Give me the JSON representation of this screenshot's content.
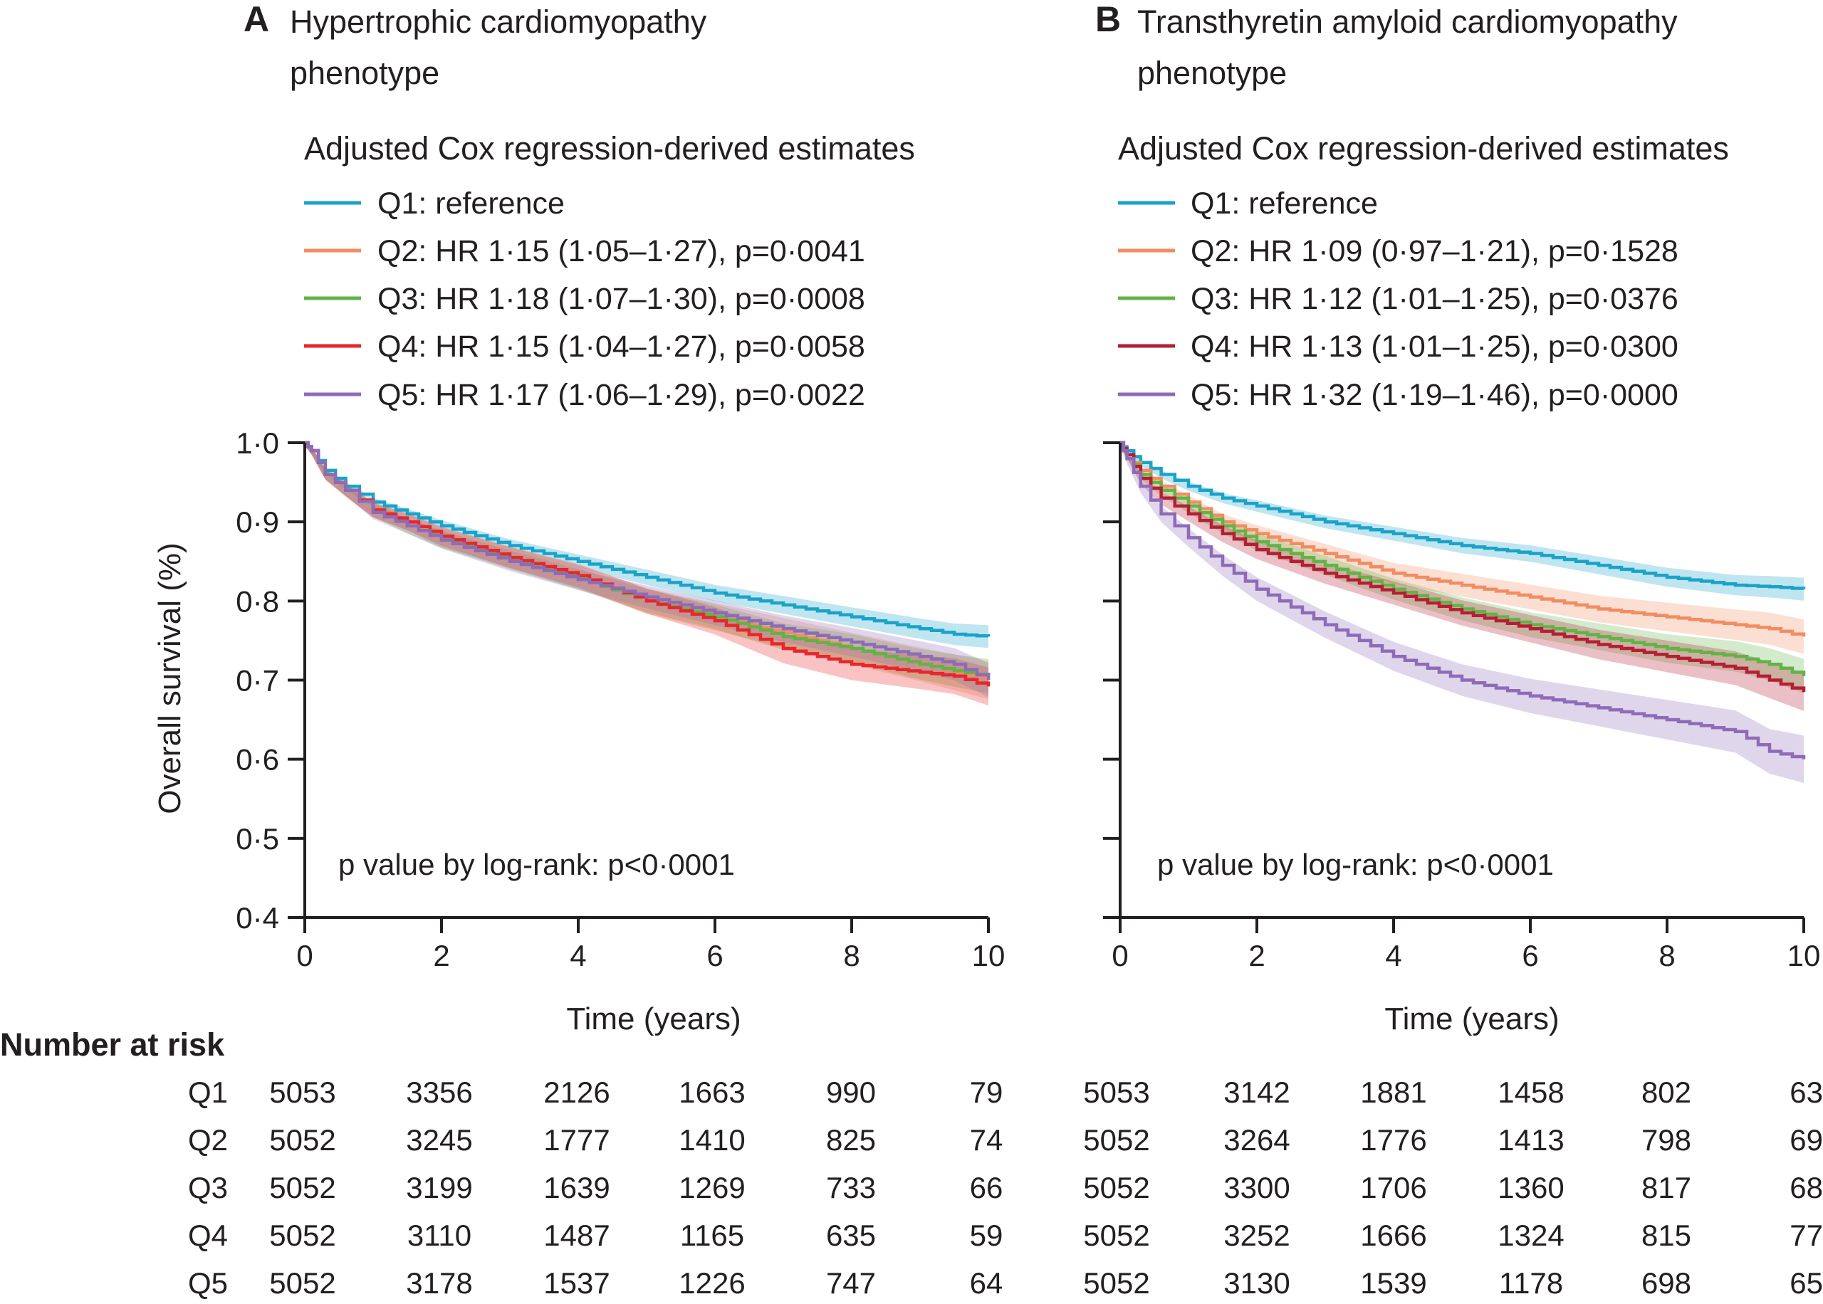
{
  "colors": {
    "Q1": "#1aa3c8",
    "Q2": "#f28c62",
    "Q3": "#62b347",
    "Q4_A": "#e8262b",
    "Q4_B": "#b51e34",
    "Q5": "#8e6bb8",
    "axis": "#231f20"
  },
  "chart_data": [
    {
      "type": "line",
      "panel_letter": "A",
      "title_lines": [
        "Hypertrophic cardiomyopathy",
        "phenotype"
      ],
      "legend_title": "Adjusted Cox regression-derived estimates",
      "legend": [
        "Q1: reference",
        "Q2: HR 1·15 (1·05–1·27), p=0·0041",
        "Q3: HR 1·18 (1·07–1·30), p=0·0008",
        "Q4: HR 1·15 (1·04–1·27), p=0·0058",
        "Q5: HR 1·17 (1·06–1·29), p=0·0022"
      ],
      "xlabel": "Time (years)",
      "ylabel": "Overall survival (%)",
      "xlim": [
        0,
        10
      ],
      "ylim": [
        0.4,
        1.0
      ],
      "xticks": [
        0,
        2,
        4,
        6,
        8,
        10
      ],
      "xtick_labels": [
        "0",
        "2",
        "4",
        "6",
        "8",
        "10"
      ],
      "yticks": [
        0.4,
        0.5,
        0.6,
        0.7,
        0.8,
        0.9,
        1.0
      ],
      "ytick_labels": [
        "0·4",
        "0·5",
        "0·6",
        "0·7",
        "0·8",
        "0·9",
        "1·0"
      ],
      "annotation": "p value by log-rank: p<0·0001",
      "risk_times": [
        "0",
        "2",
        "4",
        "6",
        "8",
        "10"
      ],
      "series": [
        {
          "key": "Q1",
          "color_key": "Q1",
          "x": [
            0,
            0.1,
            0.3,
            0.6,
            1,
            1.5,
            2,
            3,
            4,
            5,
            6,
            7,
            8,
            9,
            9.5,
            10
          ],
          "y": [
            1.0,
            0.99,
            0.965,
            0.945,
            0.925,
            0.91,
            0.895,
            0.87,
            0.85,
            0.83,
            0.81,
            0.795,
            0.78,
            0.765,
            0.758,
            0.755
          ],
          "band": 0.012,
          "at_risk": [
            "5053",
            "3356",
            "2126",
            "1663",
            "990",
            "79"
          ]
        },
        {
          "key": "Q2",
          "color_key": "Q2",
          "x": [
            0,
            0.1,
            0.3,
            0.6,
            1,
            1.5,
            2,
            3,
            4,
            5,
            6,
            7,
            8,
            9,
            9.5,
            10
          ],
          "y": [
            1.0,
            0.99,
            0.96,
            0.94,
            0.915,
            0.9,
            0.88,
            0.855,
            0.83,
            0.8,
            0.78,
            0.76,
            0.74,
            0.72,
            0.71,
            0.7
          ],
          "band": 0.02,
          "at_risk": [
            "5052",
            "3245",
            "1777",
            "1410",
            "825",
            "74"
          ]
        },
        {
          "key": "Q3",
          "color_key": "Q3",
          "x": [
            0,
            0.1,
            0.3,
            0.6,
            1,
            1.5,
            2,
            3,
            4,
            5,
            6,
            7,
            8,
            9,
            9.5,
            10
          ],
          "y": [
            1.0,
            0.99,
            0.96,
            0.94,
            0.915,
            0.895,
            0.878,
            0.852,
            0.828,
            0.8,
            0.78,
            0.755,
            0.74,
            0.72,
            0.712,
            0.705
          ],
          "band": 0.018,
          "at_risk": [
            "5052",
            "3199",
            "1639",
            "1269",
            "733",
            "66"
          ]
        },
        {
          "key": "Q4",
          "color_key": "Q4_A",
          "x": [
            0,
            0.1,
            0.3,
            0.6,
            1,
            1.5,
            2,
            3,
            4,
            5,
            6,
            7,
            8,
            9,
            9.5,
            10
          ],
          "y": [
            1.0,
            0.99,
            0.96,
            0.94,
            0.915,
            0.9,
            0.882,
            0.855,
            0.832,
            0.8,
            0.775,
            0.74,
            0.72,
            0.71,
            0.705,
            0.692
          ],
          "band": 0.02,
          "at_risk": [
            "5052",
            "3110",
            "1487",
            "1165",
            "635",
            "59"
          ]
        },
        {
          "key": "Q5",
          "color_key": "Q5",
          "x": [
            0,
            0.1,
            0.3,
            0.6,
            1,
            1.5,
            2,
            3,
            4,
            5,
            6,
            7,
            8,
            9,
            9.5,
            10
          ],
          "y": [
            1.0,
            0.99,
            0.96,
            0.94,
            0.912,
            0.895,
            0.877,
            0.85,
            0.827,
            0.805,
            0.785,
            0.765,
            0.748,
            0.73,
            0.72,
            0.7
          ],
          "band": 0.018,
          "at_risk": [
            "5052",
            "3178",
            "1537",
            "1226",
            "747",
            "64"
          ]
        }
      ]
    },
    {
      "type": "line",
      "panel_letter": "B",
      "title_lines": [
        "Transthyretin amyloid cardiomyopathy",
        "phenotype"
      ],
      "legend_title": "Adjusted Cox regression-derived estimates",
      "legend": [
        "Q1: reference",
        "Q2: HR 1·09 (0·97–1·21), p=0·1528",
        "Q3: HR 1·12 (1·01–1·25), p=0·0376",
        "Q4: HR 1·13 (1·01–1·25), p=0·0300",
        "Q5: HR 1·32 (1·19–1·46), p=0·0000"
      ],
      "xlabel": "Time (years)",
      "ylabel": "",
      "xlim": [
        0,
        10
      ],
      "ylim": [
        0.4,
        1.0
      ],
      "xticks": [
        0,
        2,
        4,
        6,
        8,
        10
      ],
      "xtick_labels": [
        "0",
        "2",
        "4",
        "6",
        "8",
        "10"
      ],
      "yticks": [
        0.4,
        0.5,
        0.6,
        0.7,
        0.8,
        0.9,
        1.0
      ],
      "ytick_labels": [],
      "annotation": "p value by log-rank: p<0·0001",
      "risk_times": [
        "0",
        "2",
        "4",
        "6",
        "8",
        "10"
      ],
      "series": [
        {
          "key": "Q1",
          "color_key": "Q1",
          "x": [
            0,
            0.1,
            0.3,
            0.6,
            1,
            1.5,
            2,
            3,
            4,
            5,
            6,
            7,
            8,
            9,
            9.5,
            10
          ],
          "y": [
            1.0,
            0.99,
            0.975,
            0.96,
            0.945,
            0.93,
            0.92,
            0.9,
            0.885,
            0.87,
            0.86,
            0.845,
            0.83,
            0.82,
            0.818,
            0.815
          ],
          "band": 0.012,
          "at_risk": [
            "5053",
            "3142",
            "1881",
            "1458",
            "802",
            "63"
          ]
        },
        {
          "key": "Q2",
          "color_key": "Q2",
          "x": [
            0,
            0.1,
            0.3,
            0.6,
            1,
            1.5,
            2,
            3,
            4,
            5,
            6,
            7,
            8,
            9,
            9.5,
            10
          ],
          "y": [
            1.0,
            0.985,
            0.965,
            0.945,
            0.925,
            0.9,
            0.885,
            0.86,
            0.835,
            0.82,
            0.805,
            0.79,
            0.78,
            0.77,
            0.765,
            0.755
          ],
          "band": 0.018,
          "at_risk": [
            "5052",
            "3264",
            "1776",
            "1413",
            "798",
            "69"
          ]
        },
        {
          "key": "Q3",
          "color_key": "Q3",
          "x": [
            0,
            0.1,
            0.3,
            0.6,
            1,
            1.5,
            2,
            3,
            4,
            5,
            6,
            7,
            8,
            9,
            9.5,
            10
          ],
          "y": [
            1.0,
            0.985,
            0.96,
            0.94,
            0.92,
            0.895,
            0.875,
            0.845,
            0.815,
            0.79,
            0.77,
            0.755,
            0.74,
            0.73,
            0.72,
            0.705
          ],
          "band": 0.018,
          "at_risk": [
            "5052",
            "3300",
            "1706",
            "1360",
            "817",
            "68"
          ]
        },
        {
          "key": "Q4",
          "color_key": "Q4_B",
          "x": [
            0,
            0.1,
            0.3,
            0.6,
            1,
            1.5,
            2,
            3,
            4,
            5,
            6,
            7,
            8,
            9,
            9.5,
            10
          ],
          "y": [
            1.0,
            0.985,
            0.955,
            0.93,
            0.91,
            0.885,
            0.865,
            0.835,
            0.81,
            0.785,
            0.765,
            0.745,
            0.73,
            0.715,
            0.7,
            0.685
          ],
          "band": 0.02,
          "at_risk": [
            "5052",
            "3252",
            "1666",
            "1324",
            "815",
            "77"
          ]
        },
        {
          "key": "Q5",
          "color_key": "Q5",
          "x": [
            0,
            0.1,
            0.3,
            0.6,
            1,
            1.5,
            2,
            3,
            4,
            5,
            6,
            7,
            8,
            9,
            9.5,
            10
          ],
          "y": [
            1.0,
            0.98,
            0.945,
            0.91,
            0.88,
            0.845,
            0.815,
            0.77,
            0.73,
            0.7,
            0.68,
            0.665,
            0.65,
            0.635,
            0.61,
            0.6
          ],
          "band": 0.025,
          "at_risk": [
            "5052",
            "3130",
            "1539",
            "1178",
            "698",
            "65"
          ]
        }
      ]
    }
  ],
  "risk_table": {
    "title": "Number at risk",
    "row_labels": [
      "Q1",
      "Q2",
      "Q3",
      "Q4",
      "Q5"
    ]
  }
}
